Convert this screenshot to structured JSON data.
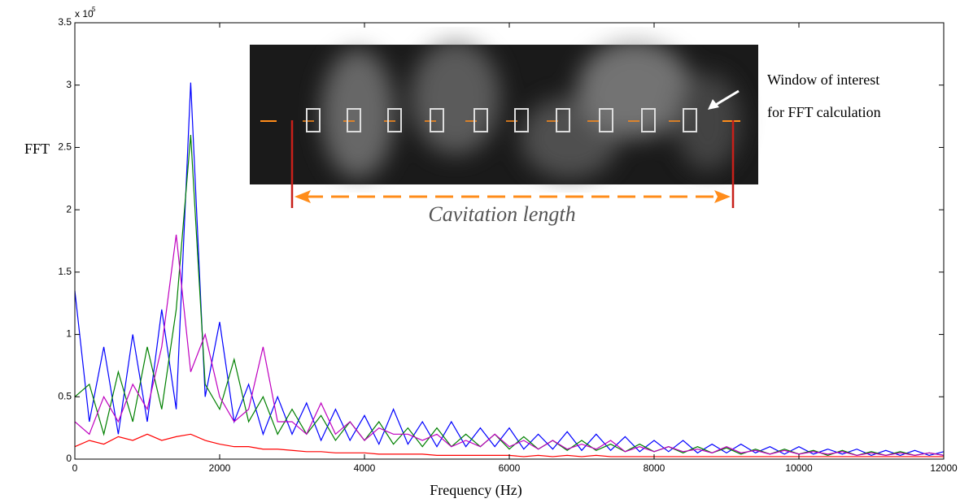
{
  "chart_data": {
    "type": "line",
    "y_label": "FFT",
    "x_label": "Frequency (Hz)",
    "y_multiplier": "x 10",
    "y_multiplier_exponent": "5",
    "annotations": [
      "Window of interest",
      "for FFT calculation",
      "Cavitation length"
    ],
    "xlim": [
      0,
      12000
    ],
    "ylim": [
      0,
      3.5
    ],
    "xticks": [
      0,
      2000,
      4000,
      6000,
      8000,
      10000,
      12000
    ],
    "yticks": [
      0,
      0.5,
      1,
      1.5,
      2,
      2.5,
      3,
      3.5
    ],
    "x": [
      0,
      200,
      400,
      600,
      800,
      1000,
      1200,
      1400,
      1600,
      1800,
      2000,
      2200,
      2400,
      2600,
      2800,
      3000,
      3200,
      3400,
      3600,
      3800,
      4000,
      4200,
      4400,
      4600,
      4800,
      5000,
      5200,
      5400,
      5600,
      5800,
      6000,
      6200,
      6400,
      6600,
      6800,
      7000,
      7200,
      7400,
      7600,
      7800,
      8000,
      8200,
      8400,
      8600,
      8800,
      9000,
      9200,
      9400,
      9600,
      9800,
      10000,
      10200,
      10400,
      10600,
      10800,
      11000,
      11200,
      11400,
      11600,
      11800,
      12000
    ],
    "series": [
      {
        "color": "#0000ff",
        "values": [
          1.35,
          0.3,
          0.9,
          0.2,
          1.0,
          0.3,
          1.2,
          0.4,
          3.02,
          0.5,
          1.1,
          0.3,
          0.6,
          0.2,
          0.5,
          0.2,
          0.45,
          0.15,
          0.4,
          0.15,
          0.35,
          0.12,
          0.4,
          0.12,
          0.3,
          0.1,
          0.3,
          0.1,
          0.25,
          0.1,
          0.25,
          0.08,
          0.2,
          0.08,
          0.22,
          0.07,
          0.2,
          0.07,
          0.18,
          0.06,
          0.15,
          0.06,
          0.15,
          0.05,
          0.12,
          0.05,
          0.12,
          0.05,
          0.1,
          0.04,
          0.1,
          0.04,
          0.08,
          0.04,
          0.08,
          0.03,
          0.07,
          0.03,
          0.07,
          0.03,
          0.06
        ]
      },
      {
        "color": "#008000",
        "values": [
          0.5,
          0.6,
          0.2,
          0.7,
          0.3,
          0.9,
          0.4,
          1.2,
          2.6,
          0.6,
          0.4,
          0.8,
          0.3,
          0.5,
          0.2,
          0.4,
          0.2,
          0.35,
          0.15,
          0.3,
          0.15,
          0.3,
          0.12,
          0.25,
          0.1,
          0.25,
          0.1,
          0.2,
          0.1,
          0.2,
          0.08,
          0.18,
          0.08,
          0.15,
          0.07,
          0.15,
          0.07,
          0.12,
          0.06,
          0.12,
          0.06,
          0.1,
          0.05,
          0.1,
          0.05,
          0.09,
          0.04,
          0.08,
          0.04,
          0.08,
          0.04,
          0.07,
          0.03,
          0.07,
          0.03,
          0.06,
          0.03,
          0.06,
          0.03,
          0.05,
          0.03
        ]
      },
      {
        "color": "#bf00bf",
        "values": [
          0.3,
          0.2,
          0.5,
          0.3,
          0.6,
          0.4,
          0.9,
          1.8,
          0.7,
          1.0,
          0.5,
          0.3,
          0.4,
          0.9,
          0.3,
          0.3,
          0.2,
          0.45,
          0.2,
          0.3,
          0.15,
          0.25,
          0.2,
          0.2,
          0.15,
          0.2,
          0.1,
          0.15,
          0.1,
          0.2,
          0.1,
          0.15,
          0.08,
          0.15,
          0.08,
          0.12,
          0.08,
          0.15,
          0.06,
          0.1,
          0.06,
          0.1,
          0.06,
          0.08,
          0.05,
          0.1,
          0.05,
          0.07,
          0.04,
          0.07,
          0.04,
          0.06,
          0.04,
          0.06,
          0.03,
          0.05,
          0.03,
          0.05,
          0.03,
          0.05,
          0.03
        ]
      },
      {
        "color": "#ff0000",
        "values": [
          0.1,
          0.15,
          0.12,
          0.18,
          0.15,
          0.2,
          0.15,
          0.18,
          0.2,
          0.15,
          0.12,
          0.1,
          0.1,
          0.08,
          0.08,
          0.07,
          0.06,
          0.06,
          0.05,
          0.05,
          0.05,
          0.04,
          0.04,
          0.04,
          0.04,
          0.03,
          0.03,
          0.03,
          0.03,
          0.03,
          0.03,
          0.02,
          0.03,
          0.02,
          0.03,
          0.02,
          0.03,
          0.02,
          0.02,
          0.02,
          0.02,
          0.02,
          0.02,
          0.02,
          0.02,
          0.02,
          0.02,
          0.02,
          0.02,
          0.02,
          0.02,
          0.02,
          0.02,
          0.02,
          0.02,
          0.02,
          0.02,
          0.02,
          0.02,
          0.02,
          0.02
        ]
      }
    ]
  }
}
